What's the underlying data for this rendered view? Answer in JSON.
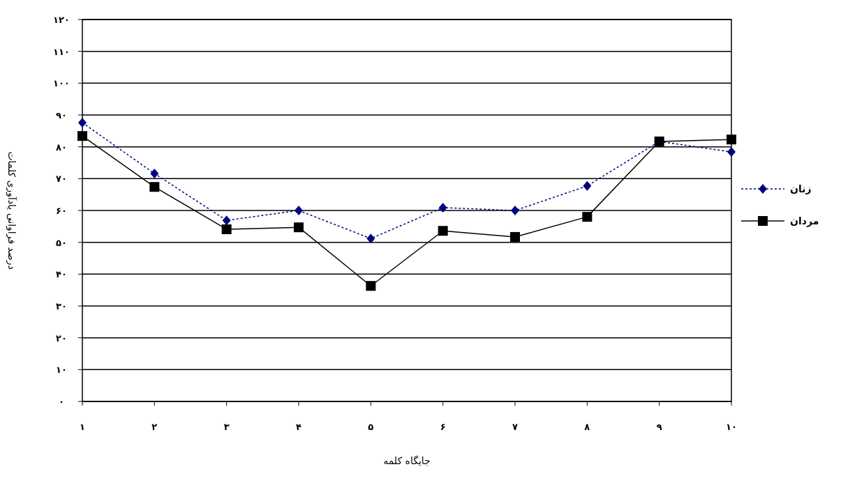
{
  "chart_data": {
    "type": "line",
    "xlabel": "جایگاه کلمه",
    "ylabel": "درصد فراوانی یادآوری کلمات",
    "categories": [
      "۱",
      "۲",
      "۳",
      "۴",
      "۵",
      "۶",
      "۷",
      "۸",
      "۹",
      "۱۰"
    ],
    "series": [
      {
        "name": "زنان",
        "color": "#000080",
        "marker": "diamond",
        "line_style": "dotted",
        "values": [
          87.6,
          71.6,
          56.9,
          60,
          51.2,
          60.9,
          60,
          67.7,
          81.7,
          78.4
        ]
      },
      {
        "name": "مردان",
        "color": "#000000",
        "marker": "square",
        "line_style": "solid",
        "values": [
          83.4,
          67.4,
          54.1,
          54.7,
          36.3,
          53.6,
          51.7,
          58,
          81.7,
          82.3
        ]
      }
    ],
    "ylim": [
      0,
      120
    ],
    "yticks": [
      {
        "value": 0,
        "label": "۰"
      },
      {
        "value": 10,
        "label": "۱۰"
      },
      {
        "value": 20,
        "label": "۲۰"
      },
      {
        "value": 30,
        "label": "۳۰"
      },
      {
        "value": 40,
        "label": "۴۰"
      },
      {
        "value": 50,
        "label": "۵۰"
      },
      {
        "value": 60,
        "label": "۶۰"
      },
      {
        "value": 70,
        "label": "۷۰"
      },
      {
        "value": 80,
        "label": "۸۰"
      },
      {
        "value": 90,
        "label": "۹۰"
      },
      {
        "value": 100,
        "label": "۱۰۰"
      },
      {
        "value": 110,
        "label": "۱۱۰"
      },
      {
        "value": 120,
        "label": "۱۲۰"
      }
    ],
    "grid": "y",
    "legend": "right"
  }
}
